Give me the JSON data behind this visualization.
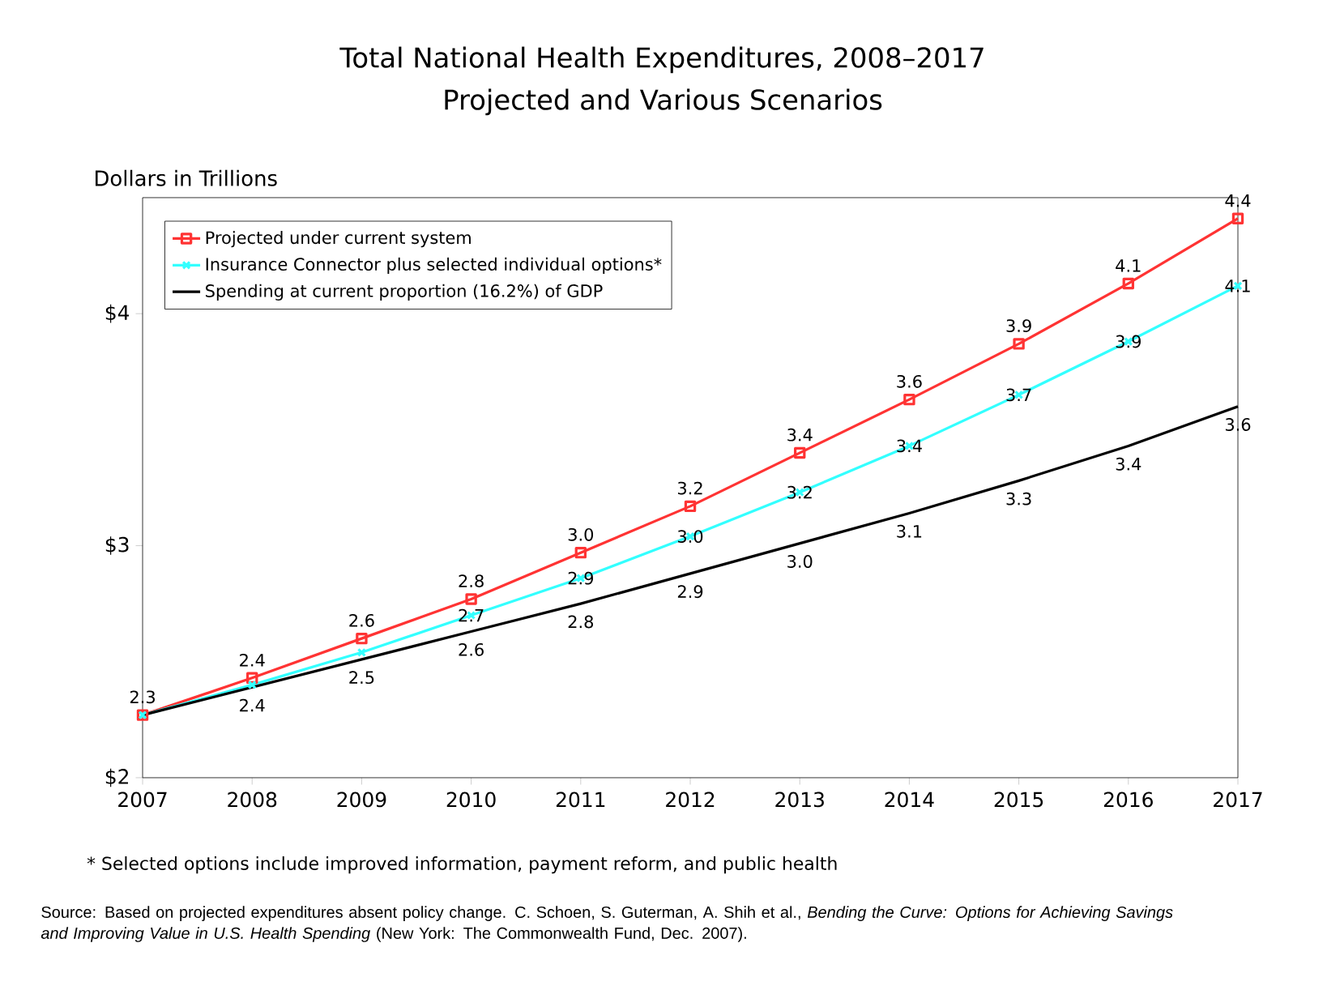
{
  "chart_data": {
    "type": "line",
    "title": "Total National Health Expenditures, 2008–2017",
    "subtitle": "Projected and Various Scenarios",
    "ylabel": "Dollars in Trillions",
    "x": [
      2007,
      2008,
      2009,
      2010,
      2011,
      2012,
      2013,
      2014,
      2015,
      2016,
      2017
    ],
    "xlim": [
      2007,
      2017
    ],
    "xticks": [
      2007,
      2008,
      2009,
      2010,
      2011,
      2012,
      2013,
      2014,
      2015,
      2016,
      2017
    ],
    "ylim": [
      2,
      4.5
    ],
    "yticks": [
      {
        "value": 2,
        "label": "$2"
      },
      {
        "value": 3,
        "label": "$3"
      },
      {
        "value": 4,
        "label": "$4"
      }
    ],
    "legend": "top left",
    "line_style": "solid",
    "series": [
      {
        "name": "Projected under current system",
        "color": "#ff3333",
        "marker": "square",
        "values": [
          2.27,
          2.43,
          2.6,
          2.77,
          2.97,
          3.17,
          3.4,
          3.63,
          3.87,
          4.13,
          4.41
        ],
        "value_labels": [
          "2.3",
          "2.4",
          "2.6",
          "2.8",
          "3.0",
          "3.2",
          "3.4",
          "3.6",
          "3.9",
          "4.1",
          "4.4"
        ]
      },
      {
        "name": "Insurance Connector plus selected individual options*",
        "color": "#33ffff",
        "marker": "cross",
        "values": [
          2.27,
          2.4,
          2.54,
          2.7,
          2.86,
          3.04,
          3.23,
          3.43,
          3.65,
          3.88,
          4.12
        ],
        "value_labels": [
          null,
          null,
          null,
          "2.7",
          "2.9",
          "3.0",
          "3.2",
          "3.4",
          "3.7",
          "3.9",
          "4.1"
        ]
      },
      {
        "name": "Spending at current proportion (16.2%) of GDP",
        "color": "#000000",
        "marker": "none",
        "values": [
          2.27,
          2.39,
          2.51,
          2.63,
          2.75,
          2.88,
          3.01,
          3.14,
          3.28,
          3.43,
          3.6
        ],
        "value_labels": [
          null,
          "2.4",
          "2.5",
          "2.6",
          "2.8",
          "2.9",
          "3.0",
          "3.1",
          "3.3",
          "3.4",
          "3.6"
        ]
      }
    ],
    "annotations": [
      "* Selected options include improved information, payment reform, and public health",
      "Source:  Based on projected expenditures absent policy change. C. Schoen, S. Guterman, A. Shih et al., *Bending the Curve: Options for Achieving Savings and Improving Value in U.S. Health Spending* (New York: The Commonwealth Fund, Dec. 2007)."
    ]
  }
}
